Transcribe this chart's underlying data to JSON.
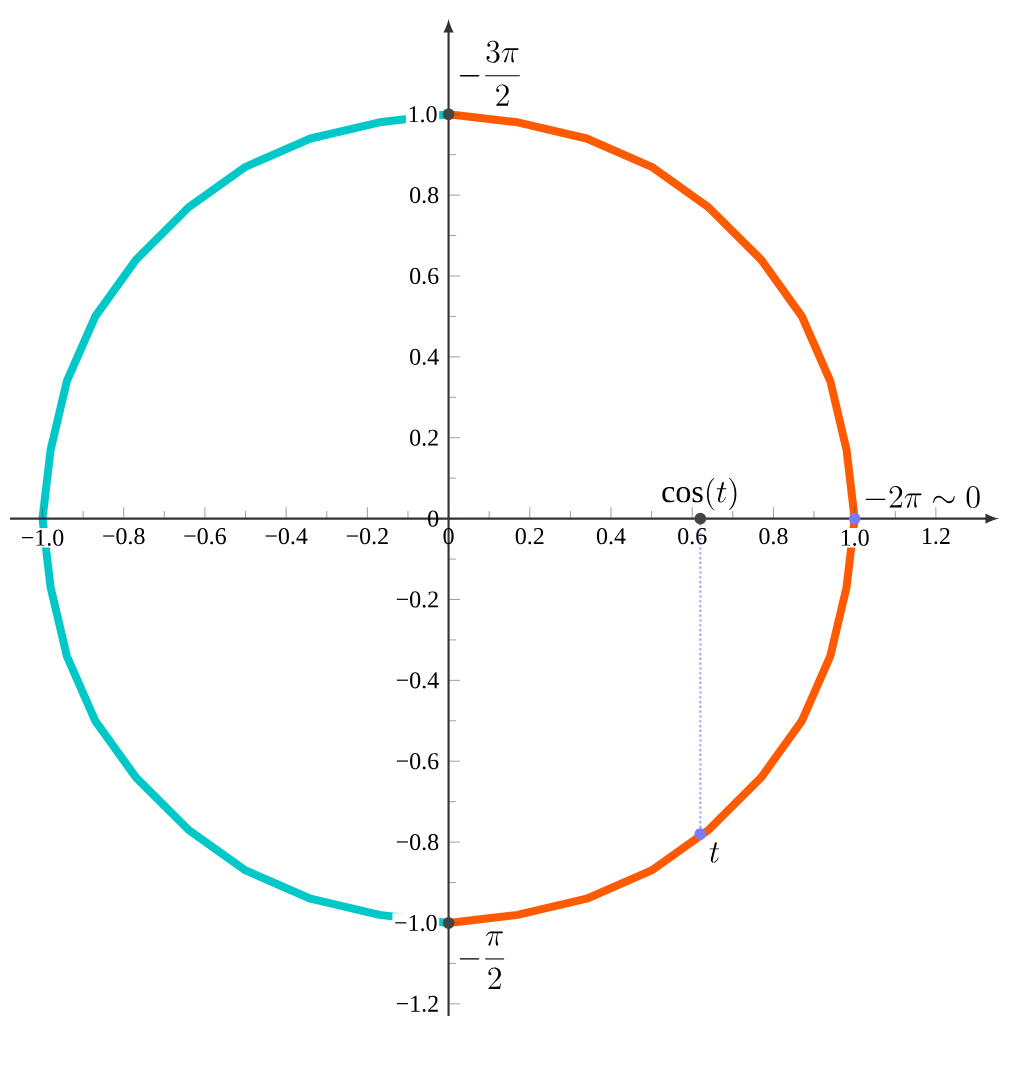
{
  "chart_data": {
    "type": "line",
    "grid": false,
    "xlim": [
      -1.08,
      1.33
    ],
    "ylim": [
      -1.23,
      1.21
    ],
    "xticks": [
      {
        "value": -1,
        "label": "−1.0"
      },
      {
        "value": -0.8,
        "label": "−0.8"
      },
      {
        "value": -0.6,
        "label": "−0.6"
      },
      {
        "value": -0.4,
        "label": "−0.4"
      },
      {
        "value": -0.2,
        "label": "−0.2"
      },
      0,
      0.2,
      0.4,
      0.6,
      0.8,
      {
        "value": 1,
        "label": "1.0"
      },
      1.2
    ],
    "yticks": [
      {
        "value": -1.2,
        "label": "−1.2"
      },
      {
        "value": -1,
        "label": "−1.0"
      },
      {
        "value": -0.8,
        "label": "−0.8"
      },
      {
        "value": -0.6,
        "label": "−0.6"
      },
      {
        "value": -0.4,
        "label": "−0.4"
      },
      {
        "value": -0.2,
        "label": "−0.2"
      },
      0,
      0.2,
      0.4,
      0.6,
      0.8,
      {
        "value": 1,
        "label": "1.0"
      }
    ],
    "series": [
      {
        "color": "#ff5a00",
        "line_style": "solid",
        "x": [
          0,
          0.17,
          0.34,
          0.5,
          0.64,
          0.77,
          0.87,
          0.94,
          0.98,
          1,
          0.98,
          0.94,
          0.87,
          0.77,
          0.64,
          0.5,
          0.34,
          0.17,
          0
        ],
        "values": [
          -1,
          -0.98,
          -0.94,
          -0.87,
          -0.77,
          -0.64,
          -0.5,
          -0.34,
          -0.17,
          0,
          0.17,
          0.34,
          0.5,
          0.64,
          0.77,
          0.87,
          0.94,
          0.98,
          1
        ]
      },
      {
        "color": "#00c8c8",
        "line_style": "solid",
        "x": [
          0,
          -0.17,
          -0.34,
          -0.5,
          -0.64,
          -0.77,
          -0.87,
          -0.94,
          -0.98,
          -1,
          -0.98,
          -0.94,
          -0.87,
          -0.77,
          -0.64,
          -0.5,
          -0.34,
          -0.17,
          0
        ],
        "values": [
          -1,
          -0.98,
          -0.94,
          -0.87,
          -0.77,
          -0.64,
          -0.5,
          -0.34,
          -0.17,
          0,
          0.17,
          0.34,
          0.5,
          0.64,
          0.77,
          0.87,
          0.94,
          0.98,
          1
        ]
      },
      {
        "color": "#a0a0ff",
        "line_style": "dotted",
        "x": [
          0.62,
          0.62
        ],
        "values": [
          0,
          -0.78
        ]
      },
      {
        "type": "scatter",
        "marker": "circle",
        "x": [
          0,
          0,
          0.62,
          1,
          0.62
        ],
        "values": [
          1,
          -1,
          0,
          0,
          -0.78
        ],
        "colors": [
          "#444444",
          "#444444",
          "#444444",
          "#7b7bff",
          "#7b7bff"
        ]
      }
    ],
    "annotations": [
      {
        "text": "-\\frac{3\\pi}{2}",
        "x": 0,
        "y": 1
      },
      {
        "text": "\\cos(t)",
        "x": 0.62,
        "y": 0
      },
      {
        "text": "-2\\pi \\sim 0",
        "x": 1,
        "y": 0
      },
      {
        "text": "t",
        "x": 0.62,
        "y": -0.78
      },
      {
        "text": "-\\frac{\\pi}{2}",
        "x": 0,
        "y": -1
      }
    ]
  }
}
